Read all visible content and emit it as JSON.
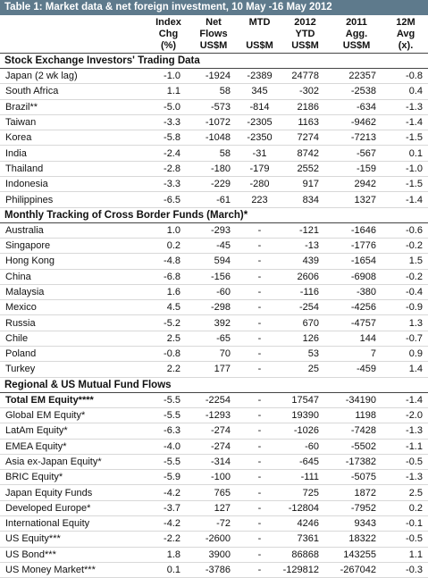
{
  "title": "Table 1: Market data & net foreign investment, 10 May -16 May 2012",
  "headers": {
    "row1": [
      "Index",
      "Net",
      "MTD",
      "2012",
      "2011",
      "12M"
    ],
    "row2": [
      "Chg",
      "Flows",
      "",
      "YTD",
      "Agg.",
      "Avg"
    ],
    "row3": [
      "(%)",
      "US$M",
      "US$M",
      "US$M",
      "US$M",
      "(x)."
    ]
  },
  "sections": [
    {
      "title": "Stock Exchange  Investors' Trading Data",
      "rows": [
        {
          "name": "Japan (2 wk lag)",
          "values": [
            "-1.0",
            "-1924",
            "-2389",
            "24778",
            "22357",
            "-0.8"
          ]
        },
        {
          "name": "South Africa",
          "values": [
            "1.1",
            "58",
            "345",
            "-302",
            "-2538",
            "0.4"
          ]
        },
        {
          "name": "Brazil**",
          "values": [
            "-5.0",
            "-573",
            "-814",
            "2186",
            "-634",
            "-1.3"
          ]
        },
        {
          "name": "Taiwan",
          "values": [
            "-3.3",
            "-1072",
            "-2305",
            "1163",
            "-9462",
            "-1.4"
          ]
        },
        {
          "name": "Korea",
          "values": [
            "-5.8",
            "-1048",
            "-2350",
            "7274",
            "-7213",
            "-1.5"
          ]
        },
        {
          "name": "India",
          "values": [
            "-2.4",
            "58",
            "-31",
            "8742",
            "-567",
            "0.1"
          ]
        },
        {
          "name": "Thailand",
          "values": [
            "-2.8",
            "-180",
            "-179",
            "2552",
            "-159",
            "-1.0"
          ]
        },
        {
          "name": "Indonesia",
          "values": [
            "-3.3",
            "-229",
            "-280",
            "917",
            "2942",
            "-1.5"
          ]
        },
        {
          "name": "Philippines",
          "values": [
            "-6.5",
            "-61",
            "223",
            "834",
            "1327",
            "-1.4"
          ]
        }
      ]
    },
    {
      "title": "Monthly Tracking of Cross Border Funds (March)*",
      "rows": [
        {
          "name": "Australia",
          "values": [
            "1.0",
            "-293",
            "-",
            "-121",
            "-1646",
            "-0.6"
          ]
        },
        {
          "name": "Singapore",
          "values": [
            "0.2",
            "-45",
            "-",
            "-13",
            "-1776",
            "-0.2"
          ]
        },
        {
          "name": "Hong Kong",
          "values": [
            "-4.8",
            "594",
            "-",
            "439",
            "-1654",
            "1.5"
          ]
        },
        {
          "name": "China",
          "values": [
            "-6.8",
            "-156",
            "-",
            "2606",
            "-6908",
            "-0.2"
          ]
        },
        {
          "name": "Malaysia",
          "values": [
            "1.6",
            "-60",
            "-",
            "-116",
            "-380",
            "-0.4"
          ]
        },
        {
          "name": "Mexico",
          "values": [
            "4.5",
            "-298",
            "-",
            "-254",
            "-4256",
            "-0.9"
          ]
        },
        {
          "name": "Russia",
          "values": [
            "-5.2",
            "392",
            "-",
            "670",
            "-4757",
            "1.3"
          ]
        },
        {
          "name": "Chile",
          "values": [
            "2.5",
            "-65",
            "-",
            "126",
            "144",
            "-0.7"
          ]
        },
        {
          "name": "Poland",
          "values": [
            "-0.8",
            "70",
            "-",
            "53",
            "7",
            "0.9"
          ]
        },
        {
          "name": "Turkey",
          "values": [
            "2.2",
            "177",
            "-",
            "25",
            "-459",
            "1.4"
          ]
        }
      ]
    },
    {
      "title": "Regional & US Mutual Fund Flows",
      "rows": [
        {
          "name": "Total EM Equity****",
          "bold": true,
          "values": [
            "-5.5",
            "-2254",
            "-",
            "17547",
            "-34190",
            "-1.4"
          ]
        },
        {
          "name": "Global EM Equity*",
          "values": [
            "-5.5",
            "-1293",
            "-",
            "19390",
            "1198",
            "-2.0"
          ]
        },
        {
          "name": "LatAm Equity*",
          "values": [
            "-6.3",
            "-274",
            "-",
            "-1026",
            "-7428",
            "-1.3"
          ]
        },
        {
          "name": "EMEA Equity*",
          "values": [
            "-4.0",
            "-274",
            "-",
            "-60",
            "-5502",
            "-1.1"
          ]
        },
        {
          "name": "Asia ex-Japan Equity*",
          "values": [
            "-5.5",
            "-314",
            "-",
            "-645",
            "-17382",
            "-0.5"
          ]
        },
        {
          "name": "BRIC Equity*",
          "values": [
            "-5.9",
            "-100",
            "-",
            "-111",
            "-5075",
            "-1.3"
          ]
        },
        {
          "name": "Japan Equity Funds",
          "values": [
            "-4.2",
            "765",
            "-",
            "725",
            "1872",
            "2.5"
          ]
        },
        {
          "name": "Developed Europe*",
          "values": [
            "-3.7",
            "127",
            "-",
            "-12804",
            "-7952",
            "0.2"
          ]
        },
        {
          "name": "International Equity",
          "values": [
            "-4.2",
            "-72",
            "-",
            "4246",
            "9343",
            "-0.1"
          ]
        },
        {
          "name": "US Equity***",
          "values": [
            "-2.2",
            "-2600",
            "-",
            "7361",
            "18322",
            "-0.5"
          ]
        },
        {
          "name": "US Bond***",
          "values": [
            "1.8",
            "3900",
            "-",
            "86868",
            "143255",
            "1.1"
          ]
        },
        {
          "name": "US Money Market***",
          "values": [
            "0.1",
            "-3786",
            "-",
            "-129812",
            "-267042",
            "-0.3"
          ]
        }
      ]
    }
  ]
}
